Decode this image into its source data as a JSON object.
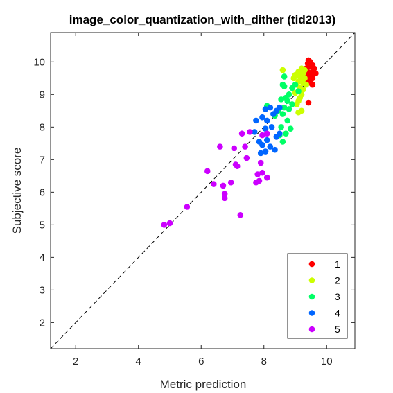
{
  "chart_data": {
    "type": "scatter",
    "title": "image_color_quantization_with_dither (tid2013)",
    "xlabel": "Metric prediction",
    "ylabel": "Subjective score",
    "xlim": [
      1.2,
      10.9
    ],
    "ylim": [
      1.2,
      10.9
    ],
    "xticks": [
      2,
      4,
      6,
      8,
      10
    ],
    "yticks": [
      2,
      3,
      4,
      5,
      6,
      7,
      8,
      9,
      10
    ],
    "grid": false,
    "legend_position": "bottom-right",
    "reference_line": "y = x (dashed)",
    "series": [
      {
        "name": "1",
        "color": "#ff0000",
        "points": [
          [
            9.42,
            10.05
          ],
          [
            9.48,
            10.0
          ],
          [
            9.4,
            9.95
          ],
          [
            9.55,
            9.9
          ],
          [
            9.45,
            9.88
          ],
          [
            9.35,
            9.8
          ],
          [
            9.5,
            9.85
          ],
          [
            9.6,
            9.8
          ],
          [
            9.3,
            9.75
          ],
          [
            9.58,
            9.7
          ],
          [
            9.42,
            9.68
          ],
          [
            9.65,
            9.65
          ],
          [
            9.5,
            9.6
          ],
          [
            9.38,
            9.55
          ],
          [
            9.55,
            9.5
          ],
          [
            9.45,
            9.45
          ],
          [
            9.4,
            9.4
          ],
          [
            9.5,
            9.35
          ],
          [
            9.55,
            9.3
          ],
          [
            9.42,
            8.75
          ]
        ]
      },
      {
        "name": "2",
        "color": "#ccff00",
        "points": [
          [
            8.6,
            9.75
          ],
          [
            9.2,
            9.8
          ],
          [
            9.3,
            9.75
          ],
          [
            9.1,
            9.7
          ],
          [
            9.25,
            9.65
          ],
          [
            9.0,
            9.6
          ],
          [
            9.15,
            9.55
          ],
          [
            8.95,
            9.5
          ],
          [
            9.3,
            9.5
          ],
          [
            9.2,
            9.45
          ],
          [
            9.1,
            9.4
          ],
          [
            9.25,
            9.35
          ],
          [
            9.05,
            9.3
          ],
          [
            9.35,
            9.3
          ],
          [
            9.15,
            9.2
          ],
          [
            9.25,
            9.15
          ],
          [
            9.0,
            9.05
          ],
          [
            9.2,
            9.0
          ],
          [
            9.15,
            8.9
          ],
          [
            9.1,
            8.8
          ],
          [
            9.05,
            8.7
          ],
          [
            9.2,
            8.5
          ],
          [
            9.1,
            8.45
          ]
        ]
      },
      {
        "name": "3",
        "color": "#00ff66",
        "points": [
          [
            8.65,
            9.55
          ],
          [
            8.6,
            9.3
          ],
          [
            8.65,
            9.25
          ],
          [
            9.0,
            9.3
          ],
          [
            8.9,
            9.2
          ],
          [
            9.1,
            9.1
          ],
          [
            8.8,
            9.0
          ],
          [
            8.7,
            8.9
          ],
          [
            8.55,
            8.85
          ],
          [
            8.75,
            8.8
          ],
          [
            8.9,
            8.7
          ],
          [
            8.65,
            8.6
          ],
          [
            8.8,
            8.55
          ],
          [
            8.45,
            8.5
          ],
          [
            8.6,
            8.4
          ],
          [
            8.35,
            8.35
          ],
          [
            8.1,
            8.65
          ],
          [
            8.75,
            8.2
          ],
          [
            8.55,
            8.0
          ],
          [
            8.85,
            7.95
          ],
          [
            8.7,
            7.8
          ],
          [
            8.5,
            7.75
          ],
          [
            8.6,
            7.55
          ]
        ]
      },
      {
        "name": "4",
        "color": "#0066ff",
        "points": [
          [
            8.2,
            8.6
          ],
          [
            8.5,
            8.6
          ],
          [
            8.4,
            8.5
          ],
          [
            8.05,
            8.55
          ],
          [
            8.3,
            8.4
          ],
          [
            7.95,
            8.3
          ],
          [
            8.1,
            8.2
          ],
          [
            7.75,
            8.2
          ],
          [
            8.25,
            8.0
          ],
          [
            8.05,
            7.95
          ],
          [
            7.7,
            7.85
          ],
          [
            8.5,
            7.8
          ],
          [
            8.4,
            7.7
          ],
          [
            8.1,
            7.6
          ],
          [
            7.85,
            7.55
          ],
          [
            7.95,
            7.45
          ],
          [
            8.2,
            7.4
          ],
          [
            8.35,
            7.3
          ],
          [
            8.05,
            7.25
          ],
          [
            7.9,
            7.2
          ]
        ]
      },
      {
        "name": "5",
        "color": "#cc00ff",
        "points": [
          [
            4.82,
            5.0
          ],
          [
            5.0,
            5.05
          ],
          [
            5.55,
            5.55
          ],
          [
            6.2,
            6.65
          ],
          [
            6.4,
            6.25
          ],
          [
            6.7,
            6.2
          ],
          [
            6.75,
            5.95
          ],
          [
            6.75,
            5.82
          ],
          [
            6.95,
            6.3
          ],
          [
            6.6,
            7.4
          ],
          [
            7.05,
            7.35
          ],
          [
            7.1,
            6.85
          ],
          [
            7.15,
            6.8
          ],
          [
            7.3,
            7.8
          ],
          [
            7.25,
            5.3
          ],
          [
            7.4,
            7.4
          ],
          [
            7.45,
            7.05
          ],
          [
            7.55,
            7.85
          ],
          [
            7.8,
            6.55
          ],
          [
            7.85,
            6.35
          ],
          [
            7.75,
            6.3
          ],
          [
            7.9,
            6.9
          ],
          [
            7.95,
            6.6
          ],
          [
            8.1,
            6.45
          ],
          [
            7.95,
            7.75
          ],
          [
            8.1,
            7.8
          ]
        ]
      }
    ]
  }
}
